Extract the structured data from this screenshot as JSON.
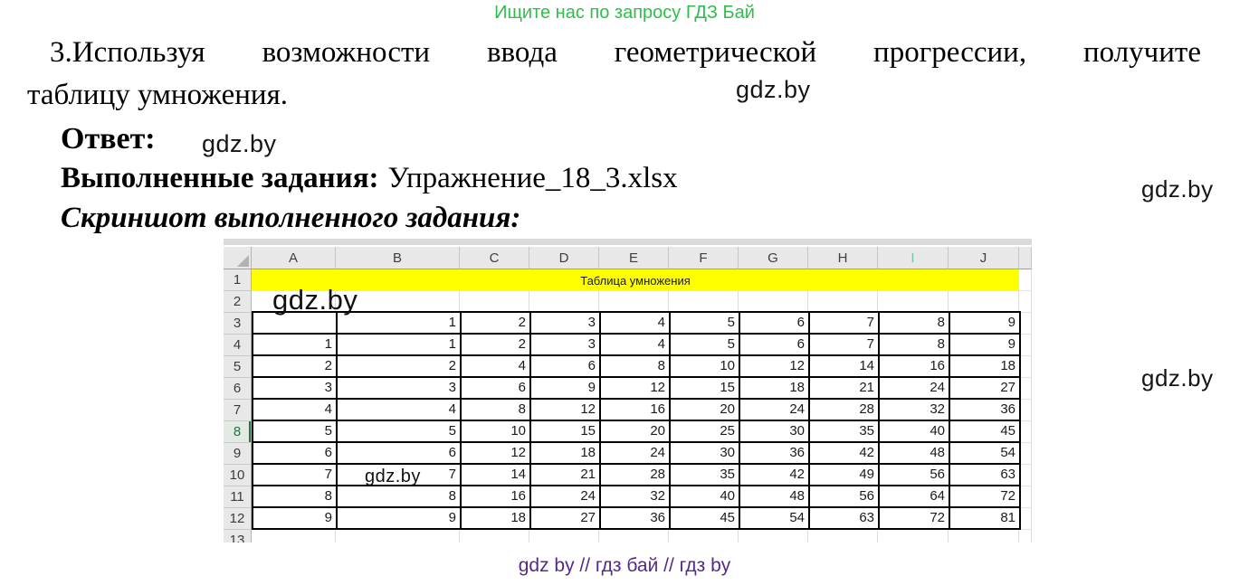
{
  "colors": {
    "banner_green": "#2fbe4d",
    "footer_purple": "#552a8a",
    "title_band_yellow": "#ffff00",
    "selection_green": "#217346"
  },
  "banner": {
    "text": "Ищите нас по запросу ГДЗ Бай"
  },
  "task": {
    "line1": "3.Используя возможности ввода геометрической прогрессии, получите",
    "line2": "таблицу умножения."
  },
  "answer": {
    "label": "Ответ:"
  },
  "completed": {
    "label": "Выполненные задания:",
    "filename": "Упражнение_18_3.xlsx"
  },
  "screenshot_caption": "Скриншот выполненного задания:",
  "watermark": {
    "text": "gdz.by"
  },
  "footer": {
    "text": "gdz by  //  гдз бай  //  гдз by"
  },
  "spreadsheet": {
    "title_text": "Таблица умножения",
    "column_headers": [
      "A",
      "B",
      "C",
      "D",
      "E",
      "F",
      "G",
      "H",
      "I",
      "J"
    ],
    "selected_column": "I",
    "row_headers": [
      "1",
      "2",
      "3",
      "4",
      "5",
      "6",
      "7",
      "8",
      "9",
      "10",
      "11",
      "12",
      "13"
    ],
    "selected_row": "8",
    "data_start_row": 3,
    "data_columns": [
      "A",
      "B",
      "C",
      "D",
      "E",
      "F",
      "G",
      "H",
      "I",
      "J"
    ],
    "rows": [
      [
        "",
        "1",
        "2",
        "3",
        "4",
        "5",
        "6",
        "7",
        "8",
        "9"
      ],
      [
        "1",
        "1",
        "2",
        "3",
        "4",
        "5",
        "6",
        "7",
        "8",
        "9"
      ],
      [
        "2",
        "2",
        "4",
        "6",
        "8",
        "10",
        "12",
        "14",
        "16",
        "18"
      ],
      [
        "3",
        "3",
        "6",
        "9",
        "12",
        "15",
        "18",
        "21",
        "24",
        "27"
      ],
      [
        "4",
        "4",
        "8",
        "12",
        "16",
        "20",
        "24",
        "28",
        "32",
        "36"
      ],
      [
        "5",
        "5",
        "10",
        "15",
        "20",
        "25",
        "30",
        "35",
        "40",
        "45"
      ],
      [
        "6",
        "6",
        "12",
        "18",
        "24",
        "30",
        "36",
        "42",
        "48",
        "54"
      ],
      [
        "7",
        "7",
        "14",
        "21",
        "28",
        "35",
        "42",
        "49",
        "56",
        "63"
      ],
      [
        "8",
        "8",
        "16",
        "24",
        "32",
        "40",
        "48",
        "56",
        "64",
        "72"
      ],
      [
        "9",
        "9",
        "18",
        "27",
        "36",
        "45",
        "54",
        "63",
        "72",
        "81"
      ]
    ]
  }
}
